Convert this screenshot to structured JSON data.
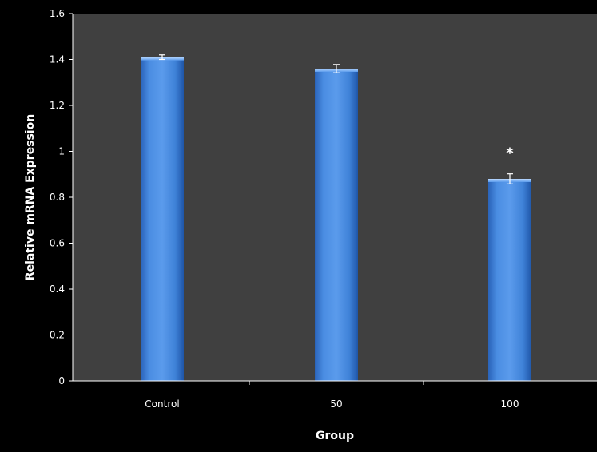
{
  "chart_data": {
    "type": "bar",
    "categories": [
      "Control",
      "50",
      "100"
    ],
    "values": [
      1.41,
      1.36,
      0.88
    ],
    "errors": [
      0.01,
      0.018,
      0.022
    ],
    "xlabel": "Group",
    "ylabel": "Relative mRNA Expression",
    "ylim": [
      0,
      1.6
    ],
    "yticks": [
      0,
      0.2,
      0.4,
      0.6,
      0.8,
      1,
      1.2,
      1.4,
      1.6
    ],
    "ytick_labels": [
      "0",
      "0.2",
      "0.4",
      "0.6",
      "0.8",
      "1",
      "1.2",
      "1.4",
      "1.6"
    ],
    "annotations": [
      {
        "category_index": 2,
        "text": "*"
      }
    ],
    "grid": false,
    "legend": false,
    "colors": {
      "background": "#000000",
      "plot_area": "#404040",
      "bar": "#3a7dd8",
      "bar_light": "#6aa6f0",
      "bar_dark": "#1f5aaa",
      "axis": "#ffffff",
      "text": "#ffffff"
    }
  }
}
